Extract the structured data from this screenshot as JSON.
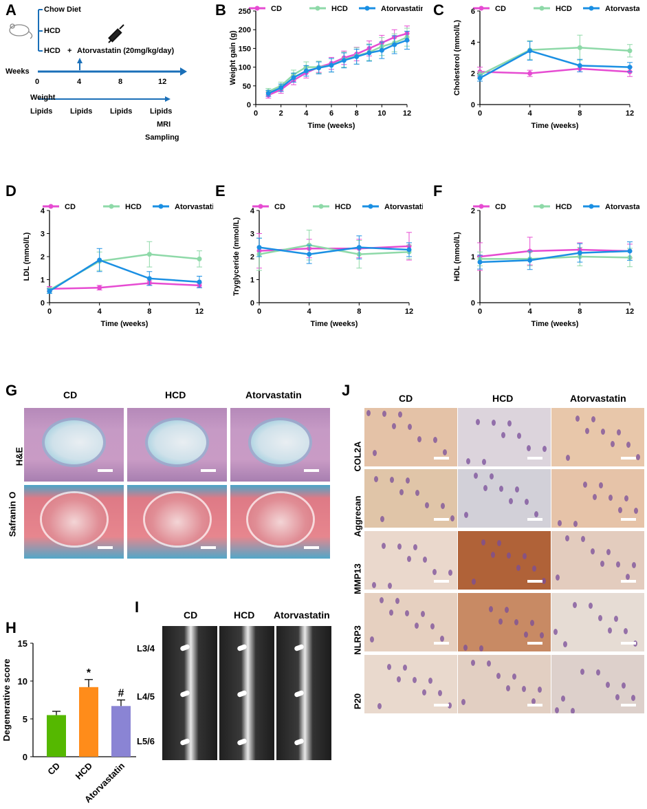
{
  "panel_labels": {
    "A": "A",
    "B": "B",
    "C": "C",
    "D": "D",
    "E": "E",
    "F": "F",
    "G": "G",
    "H": "H",
    "I": "I",
    "J": "J"
  },
  "schematic": {
    "group1": "Chow Diet",
    "group2": "HCD",
    "group3": "HCD",
    "plus": "+",
    "drug": "Atorvastatin (20mg/kg/day)",
    "weeks_label": "Weeks",
    "ticks": [
      "0",
      "4",
      "8",
      "12"
    ],
    "weight": "Weight",
    "lipids": [
      "Lipids",
      "Lipids",
      "Lipids",
      "Lipids"
    ],
    "mri": "MRI",
    "sampling": "Sampling"
  },
  "legend": {
    "cd": "CD",
    "hcd": "HCD",
    "atorva": "Atorvastatin"
  },
  "colors": {
    "cd": "#e64bd2",
    "hcd": "#8ed9a8",
    "atorva": "#1a8fe3",
    "bar_cd": "#55b800",
    "bar_hcd": "#ff8c1a",
    "bar_atorva": "#8a84d4"
  },
  "histology": {
    "cols": [
      "CD",
      "HCD",
      "Atorvastatin"
    ],
    "rows": [
      "H&E",
      "Safranin O"
    ]
  },
  "ihc": {
    "cols": [
      "CD",
      "HCD",
      "Atorvastatin"
    ],
    "rows": [
      "COL2A",
      "Aggrecan",
      "MMP13",
      "NLRP3",
      "P20"
    ]
  },
  "mri": {
    "cols": [
      "CD",
      "HCD",
      "Atorvastatin"
    ],
    "levels": [
      "L3/4",
      "L4/5",
      "L5/6"
    ]
  },
  "chart_data": [
    {
      "id": "B",
      "type": "line",
      "ylabel": "Weight gain (g)",
      "xlabel": "Time (weeks)",
      "xlim": [
        0,
        12
      ],
      "ylim": [
        0,
        250
      ],
      "xticks": [
        0,
        2,
        4,
        6,
        8,
        10,
        12
      ],
      "yticks": [
        0,
        50,
        100,
        150,
        200,
        250
      ],
      "x": [
        1,
        2,
        3,
        4,
        5,
        6,
        7,
        8,
        9,
        10,
        11,
        12
      ],
      "series": [
        {
          "name": "CD",
          "values": [
            25,
            40,
            65,
            85,
            100,
            110,
            125,
            135,
            150,
            165,
            180,
            190
          ],
          "err": [
            8,
            10,
            12,
            14,
            14,
            16,
            18,
            18,
            20,
            20,
            20,
            20
          ]
        },
        {
          "name": "HCD",
          "values": [
            35,
            50,
            80,
            100,
            100,
            105,
            120,
            130,
            140,
            155,
            165,
            180
          ],
          "err": [
            8,
            10,
            12,
            14,
            16,
            18,
            20,
            22,
            22,
            24,
            24,
            24
          ]
        },
        {
          "name": "Atorvastatin",
          "values": [
            30,
            45,
            72,
            90,
            98,
            105,
            118,
            128,
            138,
            145,
            160,
            172
          ],
          "err": [
            8,
            10,
            12,
            14,
            16,
            18,
            20,
            20,
            22,
            22,
            24,
            24
          ]
        }
      ]
    },
    {
      "id": "C",
      "type": "line",
      "ylabel": "Cholesterol (mmol/L)",
      "xlabel": "Time (weeks)",
      "xlim": [
        0,
        12
      ],
      "ylim": [
        0,
        6
      ],
      "xticks": [
        0,
        4,
        8,
        12
      ],
      "yticks": [
        0,
        2,
        4,
        6
      ],
      "x": [
        0,
        4,
        8,
        12
      ],
      "series": [
        {
          "name": "CD",
          "values": [
            2.1,
            2.0,
            2.3,
            2.1
          ],
          "err": [
            0.3,
            0.2,
            0.2,
            0.3
          ]
        },
        {
          "name": "HCD",
          "values": [
            1.9,
            3.5,
            3.65,
            3.45
          ],
          "err": [
            0.2,
            0.6,
            0.8,
            0.4
          ]
        },
        {
          "name": "Atorvastatin",
          "values": [
            1.7,
            3.45,
            2.5,
            2.4
          ],
          "err": [
            0.2,
            0.6,
            0.4,
            0.3
          ]
        }
      ]
    },
    {
      "id": "D",
      "type": "line",
      "ylabel": "LDL (mmol/L)",
      "xlabel": "Time (weeks)",
      "xlim": [
        0,
        12
      ],
      "ylim": [
        0,
        4
      ],
      "xticks": [
        0,
        4,
        8,
        12
      ],
      "yticks": [
        0,
        1,
        2,
        3,
        4
      ],
      "x": [
        0,
        4,
        8,
        12
      ],
      "series": [
        {
          "name": "CD",
          "values": [
            0.6,
            0.65,
            0.85,
            0.75
          ],
          "err": [
            0.1,
            0.1,
            0.1,
            0.1
          ]
        },
        {
          "name": "HCD",
          "values": [
            0.55,
            1.8,
            2.1,
            1.9
          ],
          "err": [
            0.1,
            0.4,
            0.55,
            0.35
          ]
        },
        {
          "name": "Atorvastatin",
          "values": [
            0.5,
            1.85,
            1.05,
            0.9
          ],
          "err": [
            0.1,
            0.5,
            0.3,
            0.25
          ]
        }
      ]
    },
    {
      "id": "E",
      "type": "line",
      "ylabel": "Tryglyceride (mmol/L)",
      "xlabel": "Time (weeks)",
      "xlim": [
        0,
        12
      ],
      "ylim": [
        0,
        4
      ],
      "xticks": [
        0,
        4,
        8,
        12
      ],
      "yticks": [
        0,
        1,
        2,
        3,
        4
      ],
      "x": [
        0,
        4,
        8,
        12
      ],
      "series": [
        {
          "name": "CD",
          "values": [
            2.25,
            2.35,
            2.35,
            2.45
          ],
          "err": [
            0.75,
            0.4,
            0.4,
            0.6
          ]
        },
        {
          "name": "HCD",
          "values": [
            2.1,
            2.5,
            2.1,
            2.2
          ],
          "err": [
            0.7,
            0.65,
            0.6,
            0.3
          ]
        },
        {
          "name": "Atorvastatin",
          "values": [
            2.4,
            2.1,
            2.4,
            2.3
          ],
          "err": [
            0.4,
            0.4,
            0.5,
            0.3
          ]
        }
      ]
    },
    {
      "id": "F",
      "type": "line",
      "ylabel": "HDL (mmol/L)",
      "xlabel": "Time (weeks)",
      "xlim": [
        0,
        12
      ],
      "ylim": [
        0,
        2
      ],
      "xticks": [
        0,
        4,
        8,
        12
      ],
      "yticks": [
        0,
        1,
        2
      ],
      "x": [
        0,
        4,
        8,
        12
      ],
      "series": [
        {
          "name": "CD",
          "values": [
            1.0,
            1.12,
            1.15,
            1.12
          ],
          "err": [
            0.3,
            0.3,
            0.15,
            0.15
          ]
        },
        {
          "name": "HCD",
          "values": [
            0.95,
            0.95,
            1.0,
            0.98
          ],
          "err": [
            0.15,
            0.15,
            0.2,
            0.2
          ]
        },
        {
          "name": "Atorvastatin",
          "values": [
            0.88,
            0.92,
            1.08,
            1.12
          ],
          "err": [
            0.15,
            0.2,
            0.2,
            0.2
          ]
        }
      ]
    },
    {
      "id": "H",
      "type": "bar",
      "ylabel": "Degenerative score",
      "categories": [
        "CD",
        "HCD",
        "Atorvastatin"
      ],
      "values": [
        5.5,
        9.2,
        6.7
      ],
      "err": [
        0.5,
        1.0,
        0.8
      ],
      "annotations": [
        "",
        "*",
        "#"
      ],
      "ylim": [
        0,
        15
      ],
      "yticks": [
        0,
        5,
        10,
        15
      ]
    }
  ]
}
